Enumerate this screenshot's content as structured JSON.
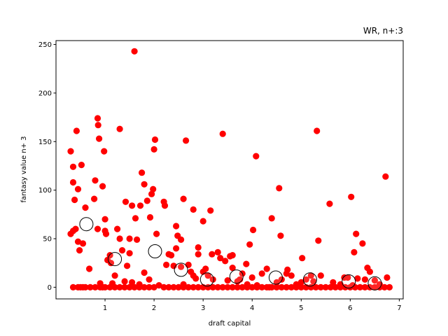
{
  "chart_data": {
    "type": "scatter",
    "title": "WR, n+:3",
    "xlabel": "draft capital",
    "ylabel": "fantasy value n+ 3",
    "xlim": [
      0.0,
      7.08
    ],
    "ylim": [
      -12,
      254
    ],
    "xticks": [
      1,
      2,
      3,
      4,
      5,
      6,
      7
    ],
    "yticks": [
      0,
      50,
      100,
      150,
      200,
      250
    ],
    "grid": false,
    "legend": "none",
    "colors": {
      "points": "#ff0000",
      "means_edge": "#000000",
      "means_fill": "#ffffff",
      "frame": "#000000"
    },
    "series": [
      {
        "marker": "filled-circle",
        "points": [
          [
            0.3,
            140
          ],
          [
            0.35,
            124
          ],
          [
            0.35,
            108
          ],
          [
            0.38,
            90
          ],
          [
            0.42,
            161
          ],
          [
            0.45,
            101
          ],
          [
            0.48,
            38
          ],
          [
            0.52,
            126
          ],
          [
            0.6,
            82
          ],
          [
            0.68,
            19
          ],
          [
            0.78,
            91
          ],
          [
            0.8,
            110
          ],
          [
            0.85,
            174
          ],
          [
            0.86,
            167
          ],
          [
            0.88,
            153
          ],
          [
            0.95,
            104
          ],
          [
            0.98,
            140
          ],
          [
            1.0,
            70
          ],
          [
            1.02,
            55
          ],
          [
            1.1,
            33
          ],
          [
            1.12,
            25
          ],
          [
            1.3,
            163
          ],
          [
            1.42,
            88
          ],
          [
            1.5,
            35
          ],
          [
            1.55,
            84
          ],
          [
            1.6,
            243
          ],
          [
            1.62,
            71
          ],
          [
            1.72,
            84
          ],
          [
            1.75,
            118
          ],
          [
            1.8,
            106
          ],
          [
            1.86,
            89
          ],
          [
            1.92,
            72
          ],
          [
            1.95,
            96
          ],
          [
            1.98,
            101
          ],
          [
            2.0,
            142
          ],
          [
            2.02,
            152
          ],
          [
            2.05,
            55
          ],
          [
            2.2,
            88
          ],
          [
            2.22,
            84
          ],
          [
            2.45,
            63
          ],
          [
            2.48,
            53
          ],
          [
            2.55,
            49
          ],
          [
            2.6,
            91
          ],
          [
            2.65,
            151
          ],
          [
            2.8,
            80
          ],
          [
            2.9,
            41
          ],
          [
            3.0,
            68
          ],
          [
            3.15,
            79
          ],
          [
            3.18,
            34
          ],
          [
            3.3,
            36
          ],
          [
            3.4,
            158
          ],
          [
            3.45,
            27
          ],
          [
            3.55,
            32
          ],
          [
            3.6,
            20
          ],
          [
            3.75,
            8
          ],
          [
            3.88,
            24
          ],
          [
            3.95,
            44
          ],
          [
            4.02,
            59
          ],
          [
            4.08,
            135
          ],
          [
            4.3,
            19
          ],
          [
            4.4,
            71
          ],
          [
            4.55,
            102
          ],
          [
            4.58,
            53
          ],
          [
            4.72,
            18
          ],
          [
            5.02,
            30
          ],
          [
            5.2,
            12
          ],
          [
            5.32,
            161
          ],
          [
            5.35,
            48
          ],
          [
            5.58,
            86
          ],
          [
            5.88,
            10
          ],
          [
            6.02,
            93
          ],
          [
            6.08,
            36
          ],
          [
            6.12,
            55
          ],
          [
            6.25,
            45
          ],
          [
            6.3,
            8
          ],
          [
            6.4,
            16
          ],
          [
            6.72,
            114
          ],
          [
            6.75,
            10
          ],
          [
            0.3,
            55
          ],
          [
            0.35,
            58
          ],
          [
            0.4,
            60
          ],
          [
            0.45,
            47
          ],
          [
            0.55,
            45
          ],
          [
            0.6,
            0
          ],
          [
            0.7,
            0
          ],
          [
            0.8,
            0
          ],
          [
            0.85,
            60
          ],
          [
            0.9,
            4
          ],
          [
            1.0,
            58
          ],
          [
            1.05,
            28
          ],
          [
            1.15,
            4
          ],
          [
            1.2,
            12
          ],
          [
            1.25,
            60
          ],
          [
            1.3,
            50
          ],
          [
            1.35,
            38
          ],
          [
            1.4,
            6
          ],
          [
            1.45,
            22
          ],
          [
            1.5,
            50
          ],
          [
            1.55,
            5
          ],
          [
            1.65,
            49
          ],
          [
            1.7,
            3
          ],
          [
            1.8,
            15
          ],
          [
            1.9,
            8
          ],
          [
            2.0,
            0
          ],
          [
            2.1,
            2
          ],
          [
            2.25,
            23
          ],
          [
            2.3,
            34
          ],
          [
            2.35,
            33
          ],
          [
            2.4,
            22
          ],
          [
            2.45,
            40
          ],
          [
            2.55,
            21
          ],
          [
            2.6,
            3
          ],
          [
            2.7,
            23
          ],
          [
            2.75,
            16
          ],
          [
            2.8,
            12
          ],
          [
            2.85,
            9
          ],
          [
            2.9,
            34
          ],
          [
            3.0,
            16
          ],
          [
            3.05,
            19
          ],
          [
            3.1,
            12
          ],
          [
            3.2,
            8
          ],
          [
            3.35,
            30
          ],
          [
            3.5,
            7
          ],
          [
            3.6,
            33
          ],
          [
            3.7,
            6
          ],
          [
            3.8,
            14
          ],
          [
            3.9,
            3
          ],
          [
            4.0,
            10
          ],
          [
            4.1,
            2
          ],
          [
            4.2,
            14
          ],
          [
            4.35,
            0
          ],
          [
            4.5,
            5
          ],
          [
            4.6,
            8
          ],
          [
            4.7,
            14
          ],
          [
            4.8,
            12
          ],
          [
            4.9,
            3
          ],
          [
            5.0,
            5
          ],
          [
            5.1,
            8
          ],
          [
            5.25,
            6
          ],
          [
            5.4,
            12
          ],
          [
            5.5,
            0
          ],
          [
            5.65,
            5
          ],
          [
            5.8,
            3
          ],
          [
            5.95,
            10
          ],
          [
            6.05,
            2
          ],
          [
            6.15,
            9
          ],
          [
            6.35,
            20
          ],
          [
            6.5,
            7
          ],
          [
            6.6,
            3
          ],
          [
            6.7,
            0
          ],
          [
            0.35,
            0
          ],
          [
            0.45,
            0
          ],
          [
            0.5,
            0
          ],
          [
            0.55,
            0
          ],
          [
            0.9,
            0
          ],
          [
            0.95,
            0
          ],
          [
            1.0,
            0
          ],
          [
            1.1,
            0
          ],
          [
            1.2,
            0
          ],
          [
            1.3,
            0
          ],
          [
            1.4,
            0
          ],
          [
            1.5,
            0
          ],
          [
            1.6,
            0
          ],
          [
            1.7,
            0
          ],
          [
            1.8,
            0
          ],
          [
            1.9,
            0
          ],
          [
            2.2,
            0
          ],
          [
            2.3,
            0
          ],
          [
            2.4,
            0
          ],
          [
            2.5,
            0
          ],
          [
            2.6,
            0
          ],
          [
            2.7,
            0
          ],
          [
            2.8,
            0
          ],
          [
            2.9,
            0
          ],
          [
            3.0,
            0
          ],
          [
            3.1,
            0
          ],
          [
            3.2,
            0
          ],
          [
            3.3,
            0
          ],
          [
            3.4,
            0
          ],
          [
            3.5,
            0
          ],
          [
            3.6,
            0
          ],
          [
            3.7,
            0
          ],
          [
            3.8,
            0
          ],
          [
            3.9,
            0
          ],
          [
            4.0,
            0
          ],
          [
            4.1,
            0
          ],
          [
            4.2,
            0
          ],
          [
            4.3,
            0
          ],
          [
            4.4,
            0
          ],
          [
            4.5,
            0
          ],
          [
            4.6,
            0
          ],
          [
            4.7,
            0
          ],
          [
            4.8,
            0
          ],
          [
            4.9,
            0
          ],
          [
            5.0,
            0
          ],
          [
            5.1,
            0
          ],
          [
            5.2,
            0
          ],
          [
            5.3,
            0
          ],
          [
            5.4,
            0
          ],
          [
            5.6,
            0
          ],
          [
            5.7,
            0
          ],
          [
            5.8,
            0
          ],
          [
            5.9,
            0
          ],
          [
            6.0,
            0
          ],
          [
            6.1,
            0
          ],
          [
            6.2,
            0
          ],
          [
            6.3,
            0
          ],
          [
            6.4,
            0
          ],
          [
            6.5,
            0
          ],
          [
            6.6,
            0
          ],
          [
            6.8,
            0
          ]
        ]
      },
      {
        "marker": "open-circle",
        "points": [
          [
            0.62,
            65
          ],
          [
            1.2,
            29
          ],
          [
            2.02,
            37
          ],
          [
            2.55,
            18
          ],
          [
            3.08,
            8
          ],
          [
            3.68,
            11
          ],
          [
            4.48,
            10
          ],
          [
            5.18,
            8
          ],
          [
            5.97,
            6
          ],
          [
            6.5,
            4
          ]
        ]
      }
    ]
  }
}
